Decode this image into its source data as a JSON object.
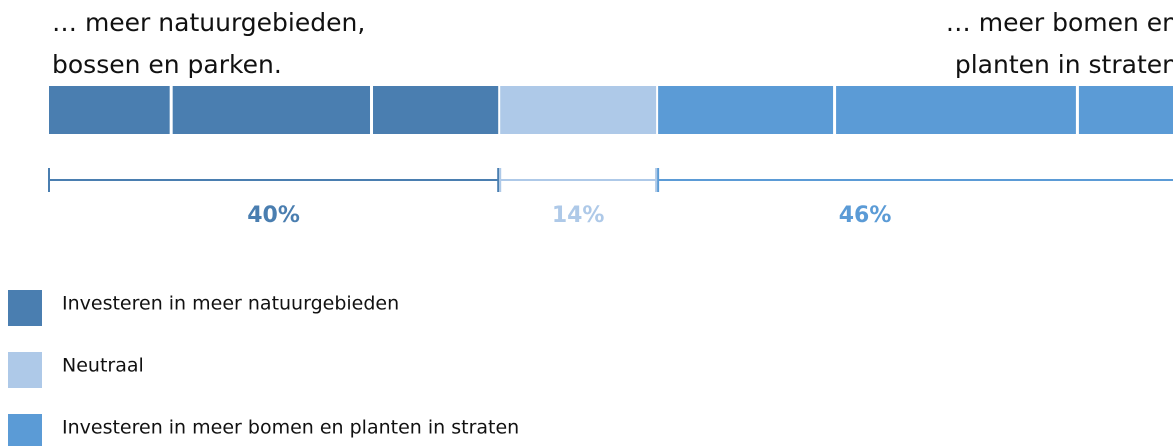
{
  "chart_data": {
    "type": "stacked_bar",
    "left_label": [
      "… meer natuurgebieden,",
      "bossen en parken."
    ],
    "right_label": [
      "… meer bomen en",
      "planten in straten"
    ],
    "xlim": [
      0,
      100
    ],
    "series": [
      {
        "name": "Investeren in meer natuurgebieden",
        "color": "#4a7eb0",
        "values": [
          40
        ],
        "value_labels": [
          "40%"
        ]
      },
      {
        "name": "Neutraal",
        "color": "#aec9e8",
        "values": [
          14
        ],
        "value_labels": [
          "14%"
        ]
      },
      {
        "name": "Investeren in meer bomen en planten in straten",
        "color": "#5b9bd6",
        "values": [
          46
        ],
        "value_labels": [
          "46%"
        ]
      }
    ]
  }
}
